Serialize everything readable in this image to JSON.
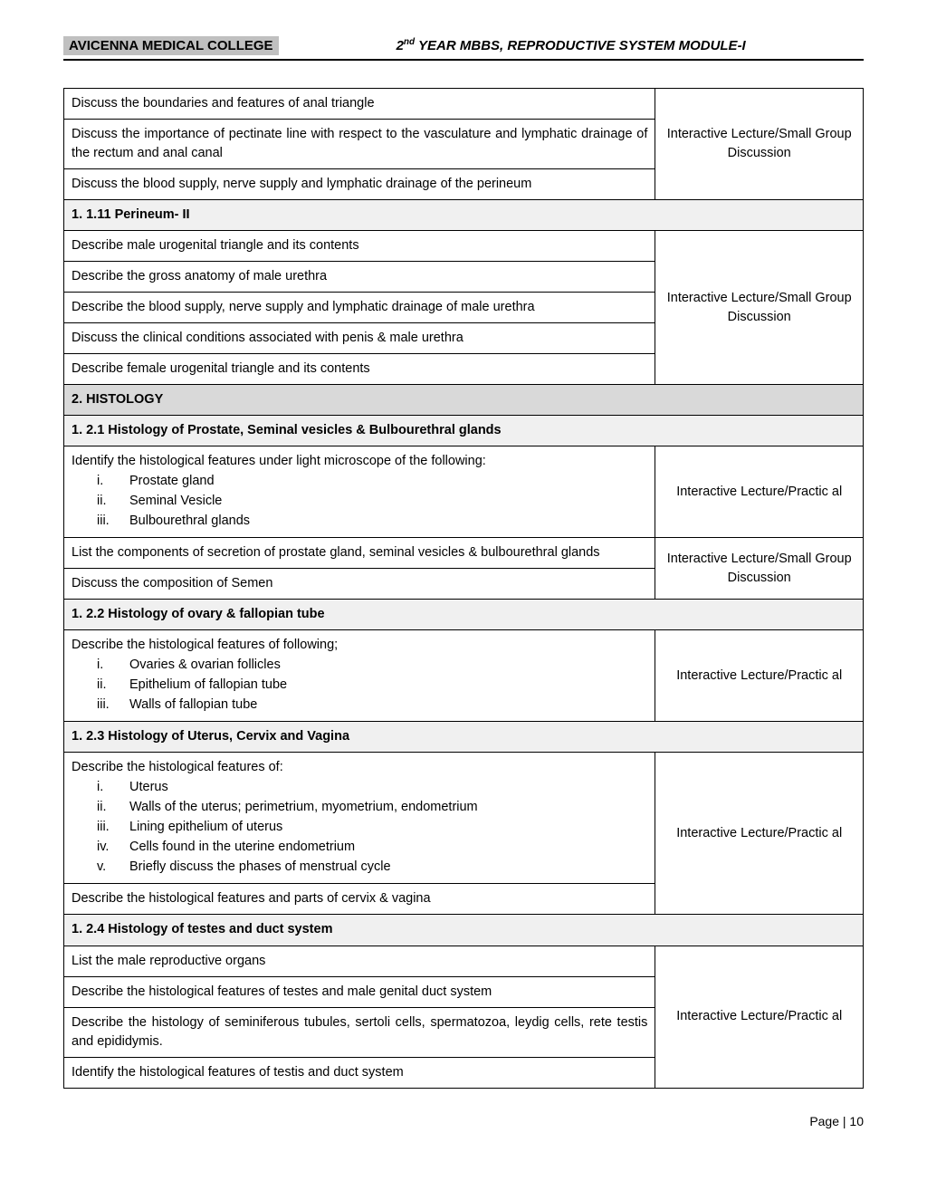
{
  "header": {
    "left": "AVICENNA MEDICAL COLLEGE",
    "right_prefix": "2",
    "right_sup": "nd",
    "right_rest": " YEAR MBBS, REPRODUCTIVE SYSTEM MODULE-I"
  },
  "methods": {
    "ils": "Interactive Lecture/Small Group Discussion",
    "ilp": "Interactive Lecture/Practic al"
  },
  "rows": [
    {
      "type": "cell",
      "text": "Discuss the boundaries and features of anal triangle",
      "right": "ils",
      "rowspan": 3
    },
    {
      "type": "cell",
      "text": "Discuss the importance of pectinate line with respect to the vasculature and lymphatic drainage of the rectum and anal canal"
    },
    {
      "type": "cell",
      "text": "Discuss the blood supply, nerve supply and lymphatic drainage of the perineum"
    },
    {
      "type": "sub",
      "text": "1. 1.11 Perineum- II"
    },
    {
      "type": "cell",
      "text": "Describe male urogenital triangle and its contents",
      "right": "ils",
      "rowspan": 5
    },
    {
      "type": "cell",
      "text": "Describe the gross anatomy of male urethra"
    },
    {
      "type": "cell",
      "text": "Describe the blood supply, nerve supply and lymphatic drainage of male urethra"
    },
    {
      "type": "cell",
      "text": "Discuss the clinical conditions associated with penis & male urethra"
    },
    {
      "type": "cell",
      "text": "Describe female urogenital triangle and its contents"
    },
    {
      "type": "section",
      "text": "2. HISTOLOGY"
    },
    {
      "type": "sub",
      "text": "1. 2.1 Histology of Prostate, Seminal vesicles & Bulbourethral glands"
    },
    {
      "type": "list",
      "intro": "Identify the histological features under light microscope of the following:",
      "items": [
        "Prostate gland",
        "Seminal Vesicle",
        "Bulbourethral glands"
      ],
      "right": "ilp",
      "rowspan": 1
    },
    {
      "type": "cell",
      "text": "List the components of secretion of prostate gland, seminal vesicles & bulbourethral glands",
      "right": "ils",
      "rowspan": 2
    },
    {
      "type": "cell",
      "text": "Discuss the composition of Semen"
    },
    {
      "type": "sub",
      "text": "1. 2.2 Histology of ovary & fallopian tube"
    },
    {
      "type": "list",
      "intro": "Describe the histological features of following;",
      "items": [
        "Ovaries & ovarian follicles",
        "Epithelium of fallopian tube",
        "Walls of fallopian tube"
      ],
      "right": "ilp",
      "rowspan": 1
    },
    {
      "type": "sub",
      "text": "1. 2.3 Histology of Uterus, Cervix and Vagina"
    },
    {
      "type": "list",
      "intro": "Describe the histological features of:",
      "items": [
        "Uterus",
        "Walls of the uterus; perimetrium, myometrium, endometrium",
        "Lining epithelium of uterus",
        "Cells found in the uterine endometrium",
        "Briefly discuss the phases of menstrual cycle"
      ],
      "right": "ilp",
      "rowspan": 2
    },
    {
      "type": "cell",
      "text": "Describe the histological features and parts of cervix & vagina"
    },
    {
      "type": "sub",
      "text": "1. 2.4 Histology of testes and duct system"
    },
    {
      "type": "cell",
      "text": "List the male reproductive organs",
      "right": "ilp",
      "rowspan": 4
    },
    {
      "type": "cell",
      "text": "Describe the histological features of testes and male genital duct system"
    },
    {
      "type": "cell",
      "text": "Describe the histology of seminiferous tubules, sertoli cells, spermatozoa, leydig cells, rete testis and epididymis."
    },
    {
      "type": "cell",
      "text": "Identify the histological features of testis and duct system"
    }
  ],
  "footer": {
    "label": "Page | 10"
  }
}
